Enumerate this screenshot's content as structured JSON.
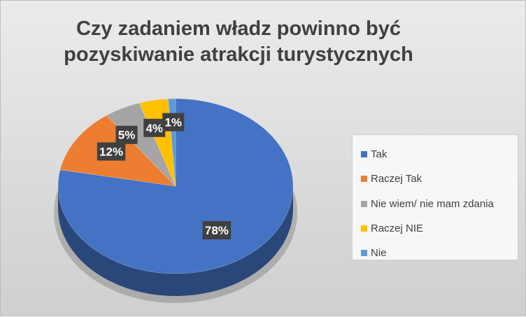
{
  "chart_data": {
    "type": "pie",
    "title_lines": [
      "Czy zadaniem władz powinno być",
      "pozyskiwanie atrakcji turystycznych"
    ],
    "categories": [
      "Tak",
      "Raczej Tak",
      "Nie wiem/ nie mam zdania",
      "Raczej NIE",
      "Nie"
    ],
    "values": [
      78,
      12,
      5,
      4,
      1
    ],
    "data_labels": [
      "78%",
      "12%",
      "5%",
      "4%",
      "1%"
    ],
    "colors": [
      "#4472C4",
      "#ED7D31",
      "#A5A5A5",
      "#FFC000",
      "#5B9BD5"
    ],
    "legend_position": "right",
    "style": "3d"
  }
}
